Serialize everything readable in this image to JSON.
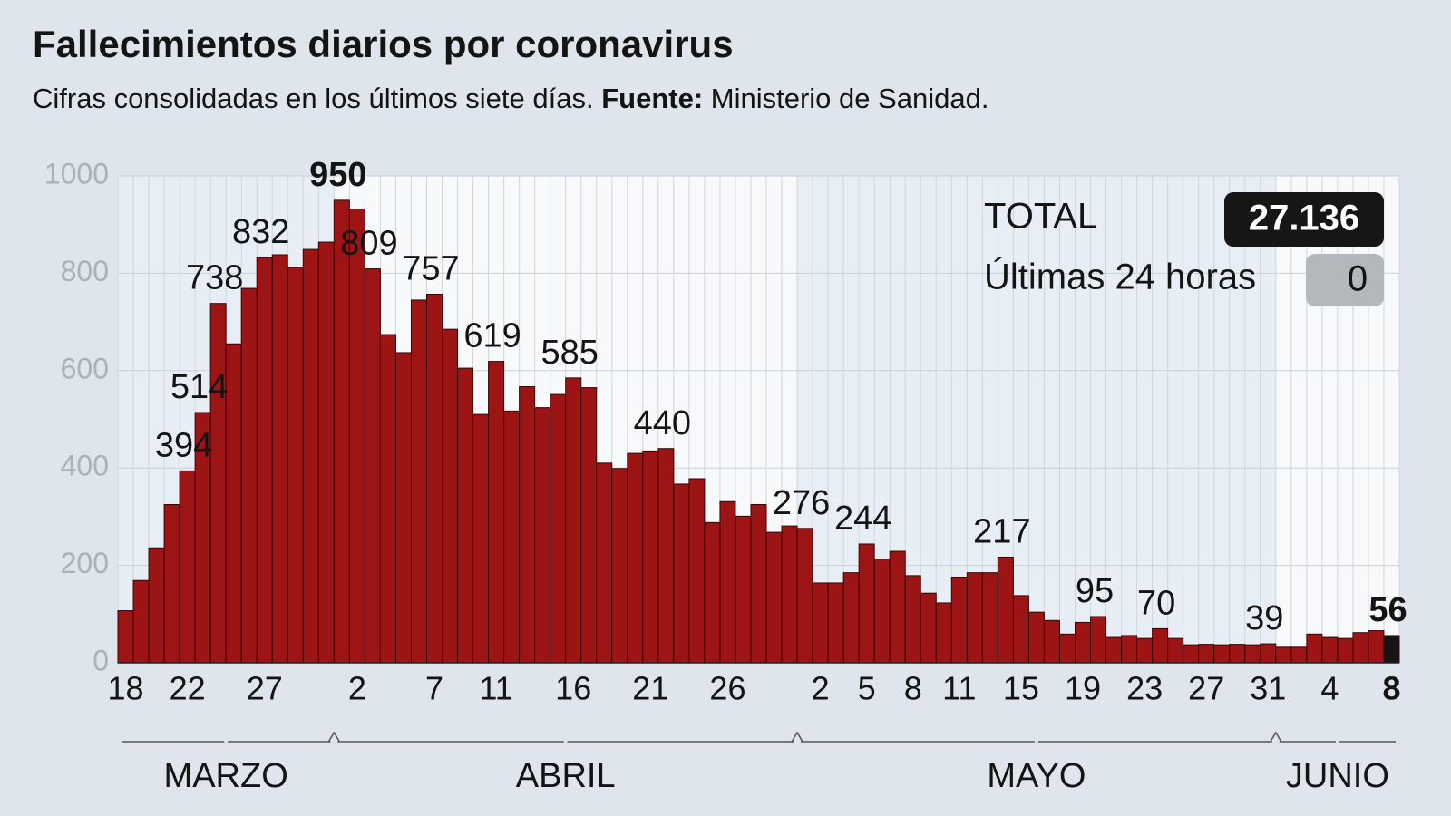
{
  "chart_data": {
    "type": "bar",
    "title": "Fallecimientos diarios por coronavirus",
    "subtitle": "Cifras consolidadas en los últimos siete días.",
    "source_label": "Fuente:",
    "source": "Ministerio de Sanidad.",
    "categories": [
      "18",
      null,
      null,
      null,
      "22",
      null,
      null,
      null,
      null,
      "27",
      null,
      null,
      null,
      null,
      null,
      "2",
      null,
      null,
      null,
      null,
      "7",
      null,
      null,
      null,
      "11",
      null,
      null,
      null,
      null,
      "16",
      null,
      null,
      null,
      null,
      "21",
      null,
      null,
      null,
      null,
      "26",
      null,
      null,
      null,
      null,
      null,
      "2",
      null,
      null,
      "5",
      null,
      null,
      "8",
      null,
      null,
      "11",
      null,
      null,
      null,
      "15",
      null,
      null,
      null,
      "19",
      null,
      null,
      null,
      "23",
      null,
      null,
      null,
      "27",
      null,
      null,
      null,
      "31",
      null,
      null,
      null,
      "4",
      null,
      null,
      null,
      "8"
    ],
    "values": [
      107,
      169,
      236,
      325,
      394,
      514,
      738,
      655,
      769,
      832,
      838,
      812,
      849,
      864,
      950,
      932,
      809,
      674,
      637,
      745,
      757,
      685,
      605,
      510,
      619,
      517,
      567,
      524,
      551,
      585,
      565,
      410,
      399,
      430,
      435,
      440,
      367,
      378,
      288,
      331,
      301,
      325,
      268,
      281,
      276,
      164,
      164,
      185,
      244,
      213,
      229,
      179,
      143,
      123,
      176,
      185,
      185,
      217,
      138,
      104,
      87,
      59,
      83,
      95,
      52,
      56,
      50,
      70,
      50,
      37,
      38,
      37,
      38,
      37,
      39,
      32,
      32,
      59,
      52,
      50,
      62,
      66,
      56
    ],
    "annotated": [
      4,
      5,
      6,
      9,
      14,
      16,
      20,
      24,
      29,
      35,
      44,
      48,
      57,
      63,
      67,
      74,
      82
    ],
    "color": "#9c1414",
    "last_color": "#141414",
    "months": [
      {
        "label": "MARZO",
        "days": 14
      },
      {
        "label": "ABRIL",
        "days": 30
      },
      {
        "label": "MAYO",
        "days": 31
      },
      {
        "label": "JUNIO",
        "days": 8
      }
    ],
    "ylim": [
      0,
      1000
    ],
    "yticks": [
      0,
      200,
      400,
      600,
      800,
      1000
    ],
    "grid": true,
    "total_label": "TOTAL",
    "total": "27.136",
    "last24_label": "Últimas 24 horas",
    "last24": 0
  }
}
